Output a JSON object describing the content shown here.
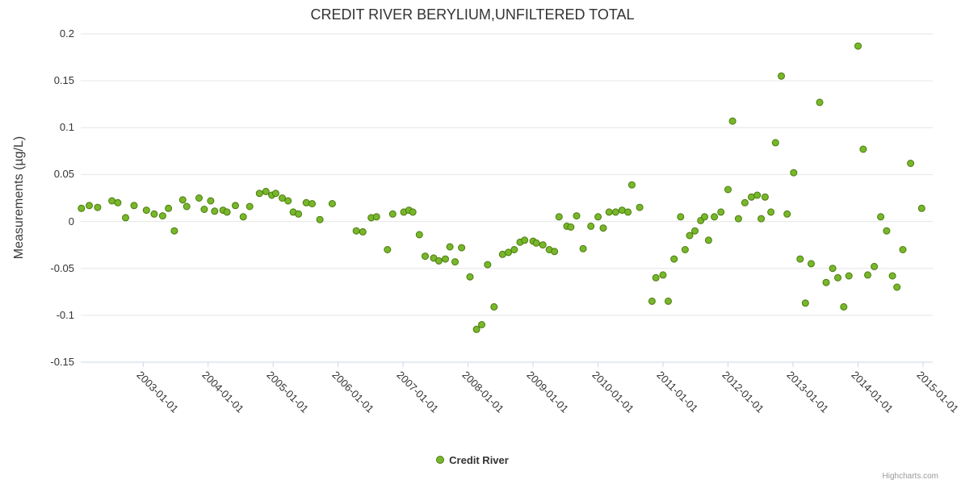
{
  "title": "CREDIT RIVER BERYLIUM,UNFILTERED TOTAL",
  "y_axis_label": "Measurements (µg/L)",
  "legend_label": "Credit River",
  "credits": "Highcharts.com",
  "colors": {
    "point_fill": "#77b82a",
    "point_stroke": "#4c7a0f",
    "grid_line": "#e6e6e6",
    "axis_line": "#ccd6eb",
    "title_text": "#333333",
    "tick_text": "#333333",
    "credits_text": "#999999"
  },
  "chart_data": {
    "type": "scatter",
    "title": "CREDIT RIVER BERYLIUM,UNFILTERED TOTAL",
    "xlabel": "",
    "ylabel": "Measurements (µg/L)",
    "ylim": [
      -0.15,
      0.2
    ],
    "y_tick_interval": 0.05,
    "xlim": [
      2002.04,
      2015.15
    ],
    "x_unit": "decimal_year",
    "grid": "horizontal",
    "legend_position": "bottom-center",
    "x_ticks": [
      {
        "value": 2003,
        "label": "2003-01-01"
      },
      {
        "value": 2004,
        "label": "2004-01-01"
      },
      {
        "value": 2005,
        "label": "2005-01-01"
      },
      {
        "value": 2006,
        "label": "2006-01-01"
      },
      {
        "value": 2007,
        "label": "2007-01-01"
      },
      {
        "value": 2008,
        "label": "2008-01-01"
      },
      {
        "value": 2009,
        "label": "2009-01-01"
      },
      {
        "value": 2010,
        "label": "2010-01-01"
      },
      {
        "value": 2011,
        "label": "2011-01-01"
      },
      {
        "value": 2012,
        "label": "2012-01-01"
      },
      {
        "value": 2013,
        "label": "2013-01-01"
      },
      {
        "value": 2014,
        "label": "2014-01-01"
      },
      {
        "value": 2015,
        "label": "2015-01-01"
      }
    ],
    "series": [
      {
        "name": "Credit River",
        "color": "#77b82a",
        "marker_stroke": "#4c7a0f",
        "marker_radius": 4,
        "points": [
          [
            2002.05,
            0.014
          ],
          [
            2002.17,
            0.017
          ],
          [
            2002.3,
            0.015
          ],
          [
            2002.52,
            0.022
          ],
          [
            2002.61,
            0.02
          ],
          [
            2002.73,
            0.004
          ],
          [
            2002.86,
            0.017
          ],
          [
            2003.05,
            0.012
          ],
          [
            2003.17,
            0.008
          ],
          [
            2003.3,
            0.006
          ],
          [
            2003.39,
            0.014
          ],
          [
            2003.48,
            -0.01
          ],
          [
            2003.61,
            0.023
          ],
          [
            2003.67,
            0.016
          ],
          [
            2003.86,
            0.025
          ],
          [
            2003.94,
            0.013
          ],
          [
            2004.04,
            0.022
          ],
          [
            2004.1,
            0.011
          ],
          [
            2004.23,
            0.012
          ],
          [
            2004.29,
            0.01
          ],
          [
            2004.42,
            0.017
          ],
          [
            2004.54,
            0.005
          ],
          [
            2004.64,
            0.016
          ],
          [
            2004.79,
            0.03
          ],
          [
            2004.89,
            0.032
          ],
          [
            2004.98,
            0.028
          ],
          [
            2005.04,
            0.03
          ],
          [
            2005.14,
            0.025
          ],
          [
            2005.23,
            0.022
          ],
          [
            2005.31,
            0.01
          ],
          [
            2005.39,
            0.008
          ],
          [
            2005.51,
            0.02
          ],
          [
            2005.6,
            0.019
          ],
          [
            2005.72,
            0.002
          ],
          [
            2005.91,
            0.019
          ],
          [
            2006.28,
            -0.01
          ],
          [
            2006.38,
            -0.011
          ],
          [
            2006.51,
            0.004
          ],
          [
            2006.59,
            0.005
          ],
          [
            2006.76,
            -0.03
          ],
          [
            2006.84,
            0.008
          ],
          [
            2007.01,
            0.01
          ],
          [
            2007.09,
            0.012
          ],
          [
            2007.15,
            0.01
          ],
          [
            2007.25,
            -0.014
          ],
          [
            2007.34,
            -0.037
          ],
          [
            2007.47,
            -0.039
          ],
          [
            2007.55,
            -0.042
          ],
          [
            2007.65,
            -0.04
          ],
          [
            2007.72,
            -0.027
          ],
          [
            2007.8,
            -0.043
          ],
          [
            2007.9,
            -0.028
          ],
          [
            2008.03,
            -0.059
          ],
          [
            2008.13,
            -0.115
          ],
          [
            2008.21,
            -0.11
          ],
          [
            2008.3,
            -0.046
          ],
          [
            2008.4,
            -0.091
          ],
          [
            2008.53,
            -0.035
          ],
          [
            2008.62,
            -0.033
          ],
          [
            2008.71,
            -0.03
          ],
          [
            2008.8,
            -0.022
          ],
          [
            2008.87,
            -0.02
          ],
          [
            2009.0,
            -0.021
          ],
          [
            2009.05,
            -0.023
          ],
          [
            2009.15,
            -0.025
          ],
          [
            2009.25,
            -0.03
          ],
          [
            2009.33,
            -0.032
          ],
          [
            2009.4,
            0.005
          ],
          [
            2009.52,
            -0.005
          ],
          [
            2009.58,
            -0.006
          ],
          [
            2009.67,
            0.006
          ],
          [
            2009.77,
            -0.029
          ],
          [
            2009.89,
            -0.005
          ],
          [
            2010.0,
            0.005
          ],
          [
            2010.08,
            -0.007
          ],
          [
            2010.17,
            0.01
          ],
          [
            2010.27,
            0.01
          ],
          [
            2010.37,
            0.012
          ],
          [
            2010.46,
            0.01
          ],
          [
            2010.52,
            0.039
          ],
          [
            2010.64,
            0.015
          ],
          [
            2010.83,
            -0.085
          ],
          [
            2010.89,
            -0.06
          ],
          [
            2011.0,
            -0.057
          ],
          [
            2011.08,
            -0.085
          ],
          [
            2011.17,
            -0.04
          ],
          [
            2011.27,
            0.005
          ],
          [
            2011.34,
            -0.03
          ],
          [
            2011.41,
            -0.015
          ],
          [
            2011.49,
            -0.01
          ],
          [
            2011.58,
            0.001
          ],
          [
            2011.64,
            0.005
          ],
          [
            2011.7,
            -0.02
          ],
          [
            2011.79,
            0.005
          ],
          [
            2011.89,
            0.01
          ],
          [
            2012.0,
            0.034
          ],
          [
            2012.07,
            0.107
          ],
          [
            2012.16,
            0.003
          ],
          [
            2012.26,
            0.02
          ],
          [
            2012.36,
            0.026
          ],
          [
            2012.45,
            0.028
          ],
          [
            2012.51,
            0.003
          ],
          [
            2012.57,
            0.026
          ],
          [
            2012.66,
            0.01
          ],
          [
            2012.73,
            0.084
          ],
          [
            2012.82,
            0.155
          ],
          [
            2012.91,
            0.008
          ],
          [
            2013.01,
            0.052
          ],
          [
            2013.11,
            -0.04
          ],
          [
            2013.19,
            -0.087
          ],
          [
            2013.28,
            -0.045
          ],
          [
            2013.41,
            0.127
          ],
          [
            2013.51,
            -0.065
          ],
          [
            2013.61,
            -0.05
          ],
          [
            2013.69,
            -0.06
          ],
          [
            2013.78,
            -0.091
          ],
          [
            2013.86,
            -0.058
          ],
          [
            2014.0,
            0.187
          ],
          [
            2014.08,
            0.077
          ],
          [
            2014.15,
            -0.057
          ],
          [
            2014.25,
            -0.048
          ],
          [
            2014.35,
            0.005
          ],
          [
            2014.44,
            -0.01
          ],
          [
            2014.53,
            -0.058
          ],
          [
            2014.6,
            -0.07
          ],
          [
            2014.69,
            -0.03
          ],
          [
            2014.81,
            0.062
          ],
          [
            2014.98,
            0.014
          ]
        ]
      }
    ]
  }
}
